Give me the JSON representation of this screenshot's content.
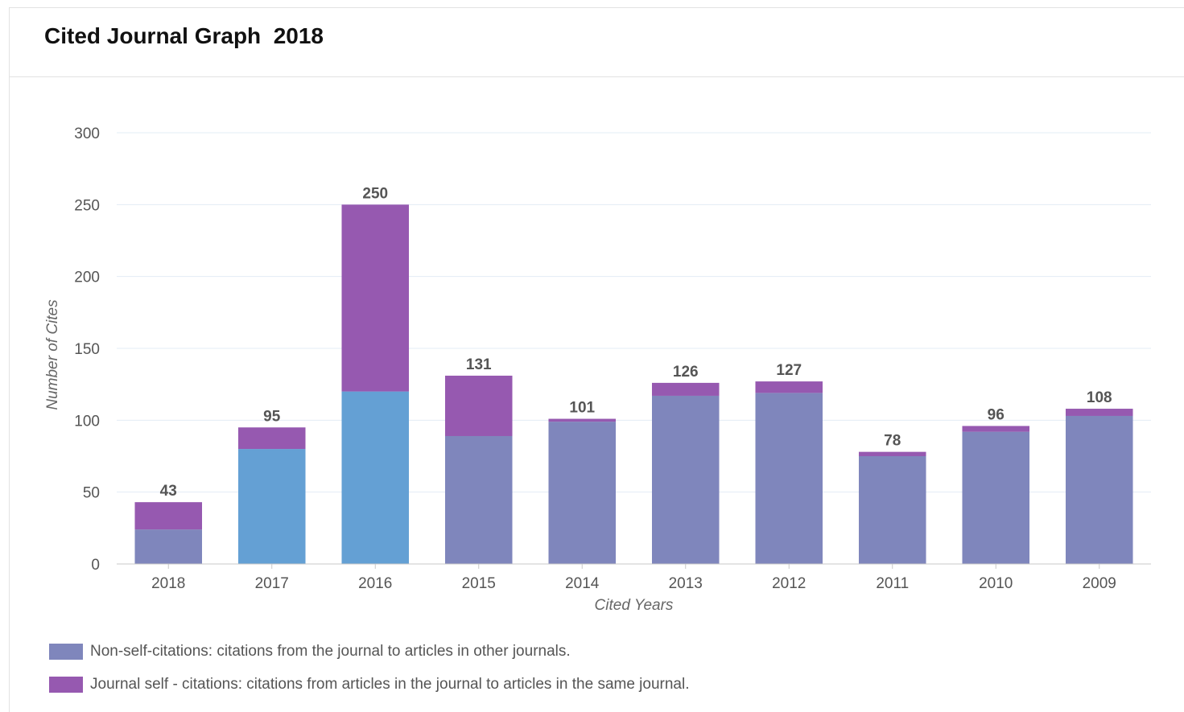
{
  "panel": {
    "title": "Cited Journal Graph  2018"
  },
  "chart_data": {
    "type": "bar",
    "stacked": true,
    "title": "Cited Journal Graph  2018",
    "xlabel": "Cited Years",
    "ylabel": "Number of Cites",
    "ylim": [
      0,
      300
    ],
    "yticks": [
      0,
      50,
      100,
      150,
      200,
      250,
      300
    ],
    "grid": true,
    "legend_position": "bottom",
    "categories": [
      "2018",
      "2017",
      "2016",
      "2015",
      "2014",
      "2013",
      "2012",
      "2011",
      "2010",
      "2009"
    ],
    "totals": [
      43,
      95,
      250,
      131,
      101,
      126,
      127,
      78,
      96,
      108
    ],
    "series": [
      {
        "name": "Non-self-citations: citations from the journal to articles in other journals.",
        "values": [
          24,
          80,
          120,
          89,
          99,
          117,
          119,
          75,
          92,
          103
        ],
        "colors": [
          "#7f86bc",
          "#64a0d4",
          "#64a0d4",
          "#7f86bc",
          "#7f86bc",
          "#7f86bc",
          "#7f86bc",
          "#7f86bc",
          "#7f86bc",
          "#7f86bc"
        ]
      },
      {
        "name": "Journal self - citations: citations from articles in the journal to articles in the same journal.",
        "values": [
          19,
          15,
          130,
          42,
          2,
          9,
          8,
          3,
          4,
          5
        ],
        "color": "#9659b0"
      }
    ]
  },
  "legend": {
    "items": [
      {
        "label": "Non-self-citations: citations from the journal to articles in other journals.",
        "color": "#7f86bc"
      },
      {
        "label": "Journal self - citations: citations from articles in the journal to articles in the same journal.",
        "color": "#9659b0"
      }
    ]
  },
  "colors": {
    "gridline": "#e3ecf5",
    "axis": "#c8c8c8",
    "text": "#555555"
  }
}
